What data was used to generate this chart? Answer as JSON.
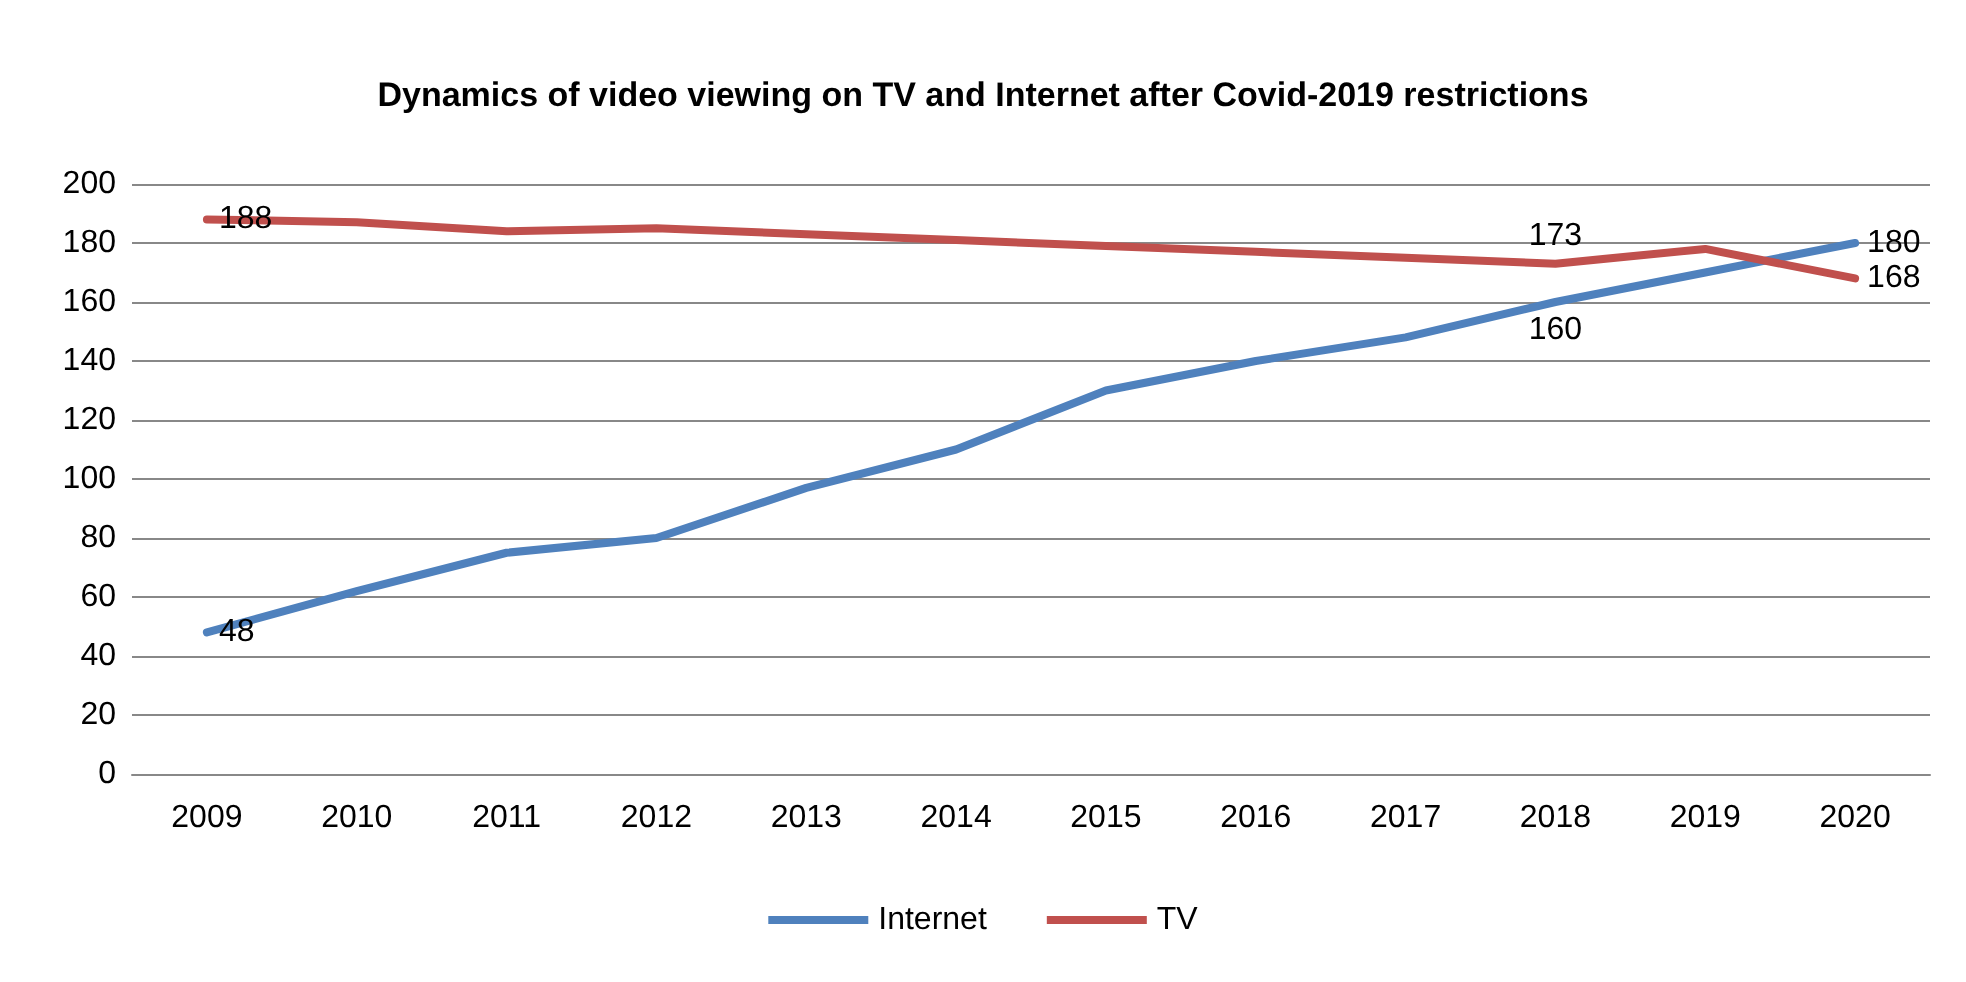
{
  "chart_data": {
    "type": "line",
    "title": "Dynamics of video viewing on TV and Internet after Covid-2019 restrictions",
    "categories": [
      "2009",
      "2010",
      "2011",
      "2012",
      "2013",
      "2014",
      "2015",
      "2016",
      "2017",
      "2018",
      "2019",
      "2020"
    ],
    "series": [
      {
        "name": "Internet",
        "color": "#4f81bd",
        "values": [
          48,
          62,
          75,
          80,
          97,
          110,
          130,
          140,
          148,
          160,
          170,
          180
        ],
        "value_labels": [
          "48",
          null,
          null,
          null,
          null,
          null,
          null,
          null,
          null,
          "160",
          null,
          "180"
        ]
      },
      {
        "name": "TV",
        "color": "#c0504d",
        "values": [
          188,
          187,
          184,
          185,
          183,
          181,
          179,
          177,
          175,
          173,
          178,
          168
        ],
        "value_labels": [
          "188",
          null,
          null,
          null,
          null,
          null,
          null,
          null,
          null,
          "173",
          null,
          "168"
        ]
      }
    ],
    "ylim": [
      0,
      200
    ],
    "yticks": [
      0,
      20,
      40,
      60,
      80,
      100,
      120,
      140,
      160,
      180,
      200
    ],
    "grid": "y",
    "legend": "bottom",
    "marker": "none",
    "line_style": "solid"
  }
}
